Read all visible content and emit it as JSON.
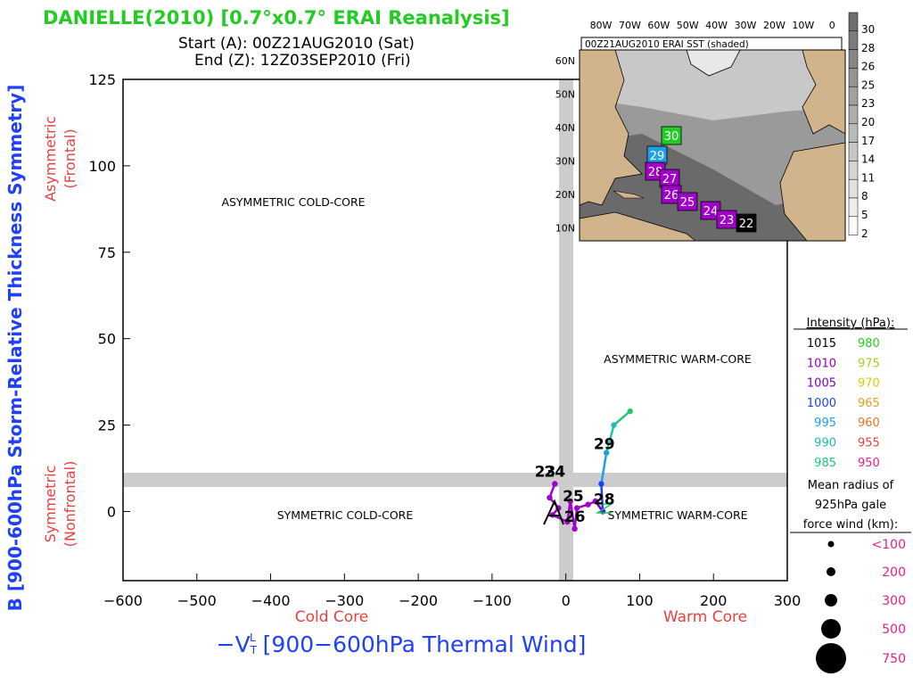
{
  "header": {
    "title": "DANIELLE(2010) [0.7°x0.7° ERAI Reanalysis]",
    "start": "Start (A): 00Z21AUG2010 (Sat)",
    "end": "End (Z): 12Z03SEP2010 (Fri)"
  },
  "chart_data": {
    "type": "line",
    "title": "DANIELLE(2010) [0.7°x0.7° ERAI Reanalysis]",
    "xlabel": "-VTL [900-600hPa Thermal Wind]",
    "xlabel_lead": "−V",
    "xlabel_rest": " [900−600hPa Thermal Wind]",
    "ylabel": "B [900-600hPa Storm-Relative Thickness Symmetry]",
    "xlim": [
      -600,
      300
    ],
    "ylim": [
      -20,
      125
    ],
    "xticks": [
      -600,
      -500,
      -400,
      -300,
      -200,
      -100,
      0,
      100,
      200,
      300
    ],
    "xtick_labels": [
      "−600",
      "−500",
      "−400",
      "−300",
      "−200",
      "−100",
      "0",
      "100",
      "200",
      "300"
    ],
    "yticks": [
      0,
      25,
      50,
      75,
      100,
      125
    ],
    "ytick_labels": [
      "0",
      "25",
      "50",
      "75",
      "100",
      "125"
    ],
    "x_side_labels": {
      "cold": "Cold Core",
      "warm": "Warm Core"
    },
    "y_side_labels": {
      "asym_1": "Asymmetric",
      "asym_2": "(Frontal)",
      "sym_1": "Symmetric",
      "sym_2": "(Nonfrontal)"
    },
    "quadrants": {
      "asym_cold": "ASYMMETRIC COLD-CORE",
      "asym_warm": "ASYMMETRIC WARM-CORE",
      "sym_cold": "SYMMETRIC COLD-CORE",
      "sym_warm": "SYMMETRIC WARM-CORE"
    },
    "track": [
      {
        "x": -15,
        "y": 8,
        "color": "#a000c8"
      },
      {
        "x": -22,
        "y": 4,
        "color": "#a000c8"
      },
      {
        "x": -10,
        "y": 1,
        "color": "#a000c8"
      },
      {
        "x": -18,
        "y": -1,
        "color": "#a000c8"
      },
      {
        "x": 2,
        "y": -3,
        "color": "#a000c8"
      },
      {
        "x": 6,
        "y": 3,
        "color": "#a000c8"
      },
      {
        "x": 12,
        "y": -5,
        "color": "#a000c8"
      },
      {
        "x": 15,
        "y": 1,
        "color": "#a000c8"
      },
      {
        "x": 30,
        "y": 2,
        "color": "#a000c8"
      },
      {
        "x": 40,
        "y": 3,
        "color": "#a000c8"
      },
      {
        "x": 50,
        "y": 0,
        "color": "#6a00d0"
      },
      {
        "x": 48,
        "y": 8,
        "color": "#2040ff"
      },
      {
        "x": 55,
        "y": 17,
        "color": "#1ea0e6"
      },
      {
        "x": 65,
        "y": 25,
        "color": "#1ebeb4"
      },
      {
        "x": 87,
        "y": 29,
        "color": "#1ec878"
      }
    ],
    "track_labels": [
      {
        "text": "23",
        "x": -28,
        "y": 10
      },
      {
        "text": "24",
        "x": -15,
        "y": 10
      },
      {
        "text": "25",
        "x": 10,
        "y": 3
      },
      {
        "text": "26",
        "x": 12,
        "y": -3
      },
      {
        "text": "28",
        "x": 52,
        "y": 2
      },
      {
        "text": "29",
        "x": 52,
        "y": 18
      }
    ]
  },
  "inset": {
    "title": "00Z21AUG2010 ERAI SST (shaded)",
    "lon_labels": [
      "80W",
      "70W",
      "60W",
      "50W",
      "40W",
      "30W",
      "20W",
      "10W",
      "0"
    ],
    "lat_labels": [
      "60N",
      "50N",
      "40N",
      "30N",
      "20N",
      "10N"
    ],
    "colorbar": [
      "30",
      "28",
      "26",
      "25",
      "23",
      "20",
      "17",
      "14",
      "11",
      "8",
      "5",
      "2"
    ],
    "boxes": [
      {
        "text": "30",
        "color": "#22cc22"
      },
      {
        "text": "29",
        "color": "#1ea0e6"
      },
      {
        "text": "28",
        "color": "#a000c8"
      },
      {
        "text": "27",
        "color": "#a000c8"
      },
      {
        "text": "26",
        "color": "#a000c8"
      },
      {
        "text": "25",
        "color": "#a000c8"
      },
      {
        "text": "24",
        "color": "#a000c8"
      },
      {
        "text": "23",
        "color": "#a000c8"
      },
      {
        "text": "22",
        "color": "#000000"
      }
    ]
  },
  "legend": {
    "title": "Intensity (hPa):",
    "rows": [
      {
        "a": "1015",
        "a_color": "#000000",
        "b": "980",
        "b_color": "#22cc22"
      },
      {
        "a": "1010",
        "a_color": "#a000c8",
        "b": "975",
        "b_color": "#a0d020"
      },
      {
        "a": "1005",
        "a_color": "#7a00d0",
        "b": "970",
        "b_color": "#e6c800"
      },
      {
        "a": "1000",
        "a_color": "#2040ff",
        "b": "965",
        "b_color": "#e6a020"
      },
      {
        "a": "995",
        "a_color": "#1ea0e6",
        "b": "960",
        "b_color": "#e67820"
      },
      {
        "a": "990",
        "a_color": "#1ebeb4",
        "b": "955",
        "b_color": "#e64040"
      },
      {
        "a": "985",
        "a_color": "#1ec878",
        "b": "950",
        "b_color": "#e61e8c"
      }
    ],
    "radius_title_1": "Mean radius of",
    "radius_title_2": "925hPa gale",
    "radius_title_3": "force wind (km):",
    "radii": [
      "<100",
      "200",
      "300",
      "500",
      "750"
    ]
  }
}
